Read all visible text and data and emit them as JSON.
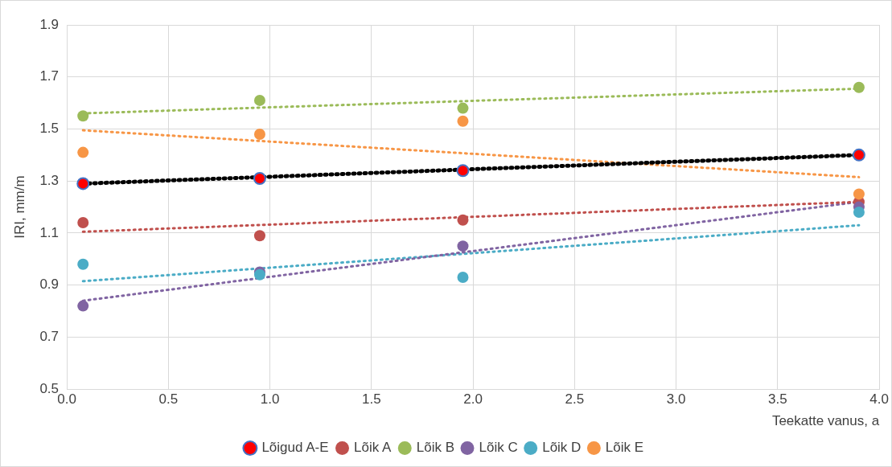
{
  "chart_data": {
    "type": "scatter",
    "xlabel": "Teekatte vanus, a",
    "ylabel": "IRI, mm/m",
    "x": [
      0.08,
      0.95,
      1.95,
      3.9
    ],
    "series": [
      {
        "name": "Lõigud A-E",
        "color": "#ff0000",
        "values": [
          1.29,
          1.31,
          1.34,
          1.4
        ],
        "marker": "circle"
      },
      {
        "name": "Lõik A",
        "color": "#c0504d",
        "values": [
          1.14,
          1.09,
          1.15,
          1.22
        ],
        "marker": "circle"
      },
      {
        "name": "Lõik B",
        "color": "#9bbb59",
        "values": [
          1.55,
          1.61,
          1.58,
          1.66
        ],
        "marker": "circle"
      },
      {
        "name": "Lõik C",
        "color": "#8064a2",
        "values": [
          0.82,
          0.95,
          1.05,
          1.2
        ],
        "marker": "circle"
      },
      {
        "name": "Lõik D",
        "color": "#4bacc6",
        "values": [
          0.98,
          0.94,
          0.93,
          1.18
        ],
        "marker": "circle"
      },
      {
        "name": "Lõik E",
        "color": "#f79646",
        "values": [
          1.41,
          1.48,
          1.53,
          1.25
        ],
        "marker": "circle"
      },
      {
        "type": "line",
        "color": "#000000",
        "values": [
          1.29,
          1.315,
          1.344,
          1.4
        ],
        "marker": "none",
        "line_style": "dotted"
      },
      {
        "type": "line",
        "color": "#c0504d",
        "values": [
          1.105,
          1.131,
          1.161,
          1.22
        ],
        "marker": "none",
        "line_style": "dotted"
      },
      {
        "type": "line",
        "color": "#9bbb59",
        "values": [
          1.56,
          1.582,
          1.607,
          1.655
        ],
        "marker": "none",
        "line_style": "dotted"
      },
      {
        "type": "line",
        "color": "#8064a2",
        "values": [
          0.84,
          0.927,
          1.026,
          1.22
        ],
        "marker": "none",
        "line_style": "dotted"
      },
      {
        "type": "line",
        "color": "#4bacc6",
        "values": [
          0.915,
          0.964,
          1.02,
          1.13
        ],
        "marker": "none",
        "line_style": "dotted"
      },
      {
        "type": "line",
        "color": "#f79646",
        "values": [
          1.495,
          1.454,
          1.407,
          1.315
        ],
        "marker": "none",
        "line_style": "dotted"
      }
    ],
    "xlim": [
      0,
      4
    ],
    "xticks": [
      {
        "value": 0,
        "label": "0.0"
      },
      {
        "value": 0.5,
        "label": "0.5"
      },
      {
        "value": 1,
        "label": "1.0"
      },
      {
        "value": 1.5,
        "label": "1.5"
      },
      {
        "value": 2,
        "label": "2.0"
      },
      {
        "value": 2.5,
        "label": "2.5"
      },
      {
        "value": 3,
        "label": "3.0"
      },
      {
        "value": 3.5,
        "label": "3.5"
      },
      {
        "value": 4,
        "label": "4.0"
      }
    ],
    "ylim": [
      0.5,
      1.9
    ],
    "yticks": [
      0.5,
      0.7,
      0.9,
      1.1,
      1.3,
      1.5,
      1.7,
      1.9
    ],
    "grid": true,
    "legend": "bottom"
  }
}
